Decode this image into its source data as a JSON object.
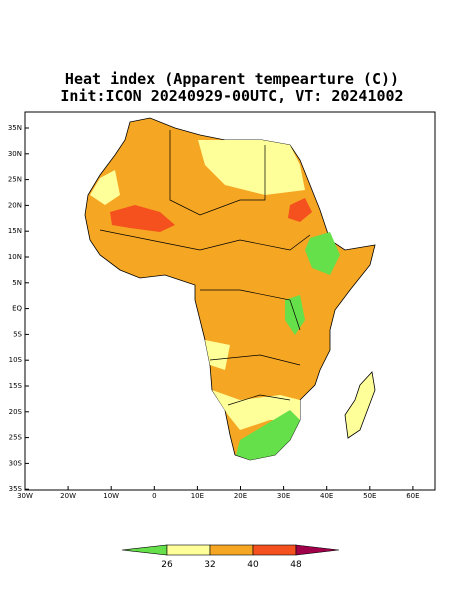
{
  "header": {
    "title": "Heat index (Apparent tempearture (C))",
    "subtitle": "Init:ICON 20240929-00UTC, VT: 20241002"
  },
  "lat_labels": [
    "35N",
    "30N",
    "25N",
    "20N",
    "15N",
    "10N",
    "5N",
    "EQ",
    "5S",
    "10S",
    "15S",
    "20S",
    "25S",
    "30S",
    "35S"
  ],
  "lon_labels": [
    "30W",
    "20W",
    "10W",
    "0",
    "10E",
    "20E",
    "30E",
    "40E",
    "50E",
    "60E"
  ],
  "colorbar": {
    "ticks": [
      26,
      32,
      40,
      48
    ],
    "colors": [
      "#66e04a",
      "#ffff99",
      "#f5a623",
      "#f4511e",
      "#a0004a"
    ]
  }
}
